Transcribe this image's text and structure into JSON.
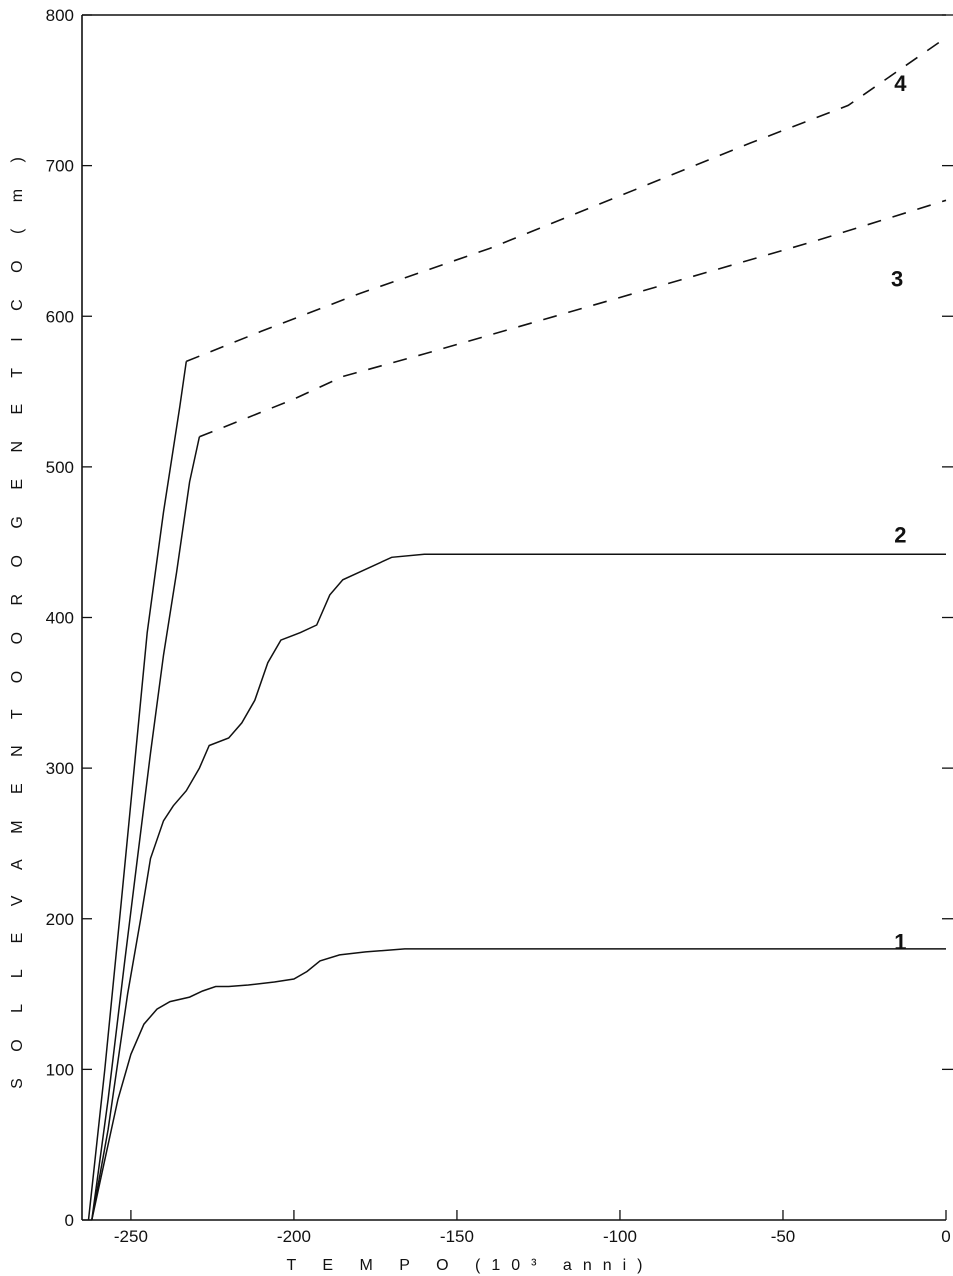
{
  "chart_data": {
    "type": "line",
    "xlabel": "T E M P O   (10³ anni)",
    "ylabel": "S O L L E V A M E N T O   O R O G E N E T I C O   ( m )",
    "xlim": [
      -265,
      0
    ],
    "ylim": [
      0,
      800
    ],
    "x_ticks": [
      -250,
      -200,
      -150,
      -100,
      -50,
      0
    ],
    "x_tick_labels": [
      "-250",
      "-200",
      "-150",
      "-100",
      "-50",
      "0"
    ],
    "y_ticks": [
      0,
      100,
      200,
      300,
      400,
      500,
      600,
      700,
      800
    ],
    "y_tick_labels": [
      "0",
      "100",
      "200",
      "300",
      "400",
      "500",
      "600",
      "700",
      "800"
    ],
    "grid": false,
    "series": [
      {
        "name": "1",
        "label_pos": [
          -14,
          185
        ],
        "points": [
          [
            -262,
            0
          ],
          [
            -258,
            40
          ],
          [
            -254,
            80
          ],
          [
            -250,
            110
          ],
          [
            -246,
            130
          ],
          [
            -242,
            140
          ],
          [
            -238,
            145
          ],
          [
            -232,
            148
          ],
          [
            -228,
            152
          ],
          [
            -224,
            155
          ],
          [
            -220,
            155
          ],
          [
            -214,
            156
          ],
          [
            -206,
            158
          ],
          [
            -200,
            160
          ],
          [
            -196,
            165
          ],
          [
            -192,
            172
          ],
          [
            -186,
            176
          ],
          [
            -178,
            178
          ],
          [
            -166,
            180
          ],
          [
            -150,
            180
          ],
          [
            -100,
            180
          ],
          [
            -50,
            180
          ],
          [
            0,
            180
          ]
        ],
        "dashed_points": []
      },
      {
        "name": "2",
        "label_pos": [
          -14,
          455
        ],
        "points": [
          [
            -262,
            0
          ],
          [
            -257,
            60
          ],
          [
            -251,
            150
          ],
          [
            -247,
            200
          ],
          [
            -244,
            240
          ],
          [
            -240,
            265
          ],
          [
            -237,
            275
          ],
          [
            -233,
            285
          ],
          [
            -229,
            300
          ],
          [
            -226,
            315
          ],
          [
            -220,
            320
          ],
          [
            -216,
            330
          ],
          [
            -212,
            345
          ],
          [
            -208,
            370
          ],
          [
            -204,
            385
          ],
          [
            -198,
            390
          ],
          [
            -193,
            395
          ],
          [
            -189,
            415
          ],
          [
            -185,
            425
          ],
          [
            -180,
            430
          ],
          [
            -170,
            440
          ],
          [
            -160,
            442
          ],
          [
            -150,
            442
          ],
          [
            -100,
            442
          ],
          [
            -50,
            442
          ],
          [
            0,
            442
          ]
        ],
        "dashed_points": []
      },
      {
        "name": "3",
        "label_pos": [
          -15,
          625
        ],
        "points": [
          [
            -262,
            0
          ],
          [
            -257,
            80
          ],
          [
            -252,
            170
          ],
          [
            -248,
            240
          ],
          [
            -244,
            310
          ],
          [
            -240,
            375
          ],
          [
            -236,
            430
          ],
          [
            -232,
            490
          ],
          [
            -229,
            520
          ]
        ],
        "dashed_points": [
          [
            -229,
            520
          ],
          [
            -215,
            532
          ],
          [
            -200,
            545
          ],
          [
            -185,
            560
          ],
          [
            -160,
            575
          ],
          [
            -120,
            600
          ],
          [
            -80,
            625
          ],
          [
            -40,
            650
          ],
          [
            0,
            677
          ]
        ]
      },
      {
        "name": "4",
        "label_pos": [
          -14,
          755
        ],
        "points": [
          [
            -263,
            0
          ],
          [
            -258,
            100
          ],
          [
            -253,
            210
          ],
          [
            -249,
            300
          ],
          [
            -245,
            390
          ],
          [
            -240,
            470
          ],
          [
            -235,
            540
          ],
          [
            -233,
            570
          ]
        ],
        "dashed_points": [
          [
            -233,
            570
          ],
          [
            -210,
            590
          ],
          [
            -180,
            615
          ],
          [
            -140,
            645
          ],
          [
            -100,
            680
          ],
          [
            -60,
            715
          ],
          [
            -30,
            740
          ],
          [
            0,
            785
          ]
        ]
      }
    ]
  }
}
